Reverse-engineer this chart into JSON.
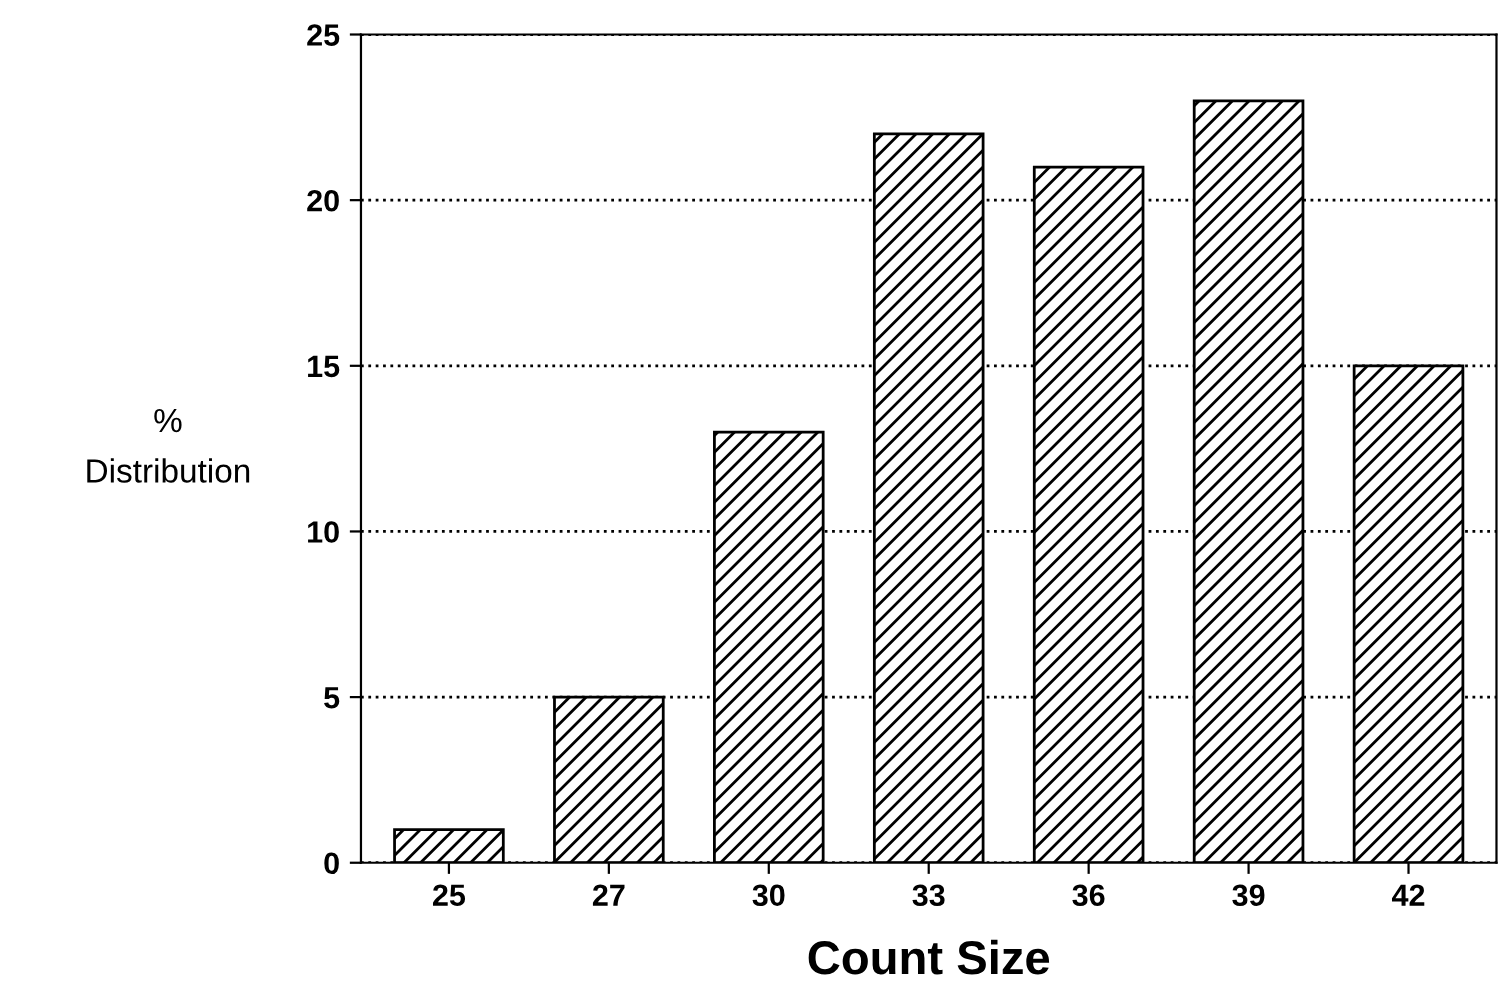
{
  "chart_data": {
    "type": "bar",
    "xlabel": "Count Size",
    "ylabel": "%\nDistribution",
    "categories": [
      "25",
      "27",
      "30",
      "33",
      "36",
      "39",
      "42"
    ],
    "values": [
      1,
      5,
      13,
      22,
      21,
      23,
      15
    ],
    "color": "#000000",
    "ylim": [
      0,
      25
    ],
    "yticks": [
      0,
      5,
      10,
      15,
      20,
      25
    ],
    "grid": "y",
    "line_style": "dotted"
  }
}
